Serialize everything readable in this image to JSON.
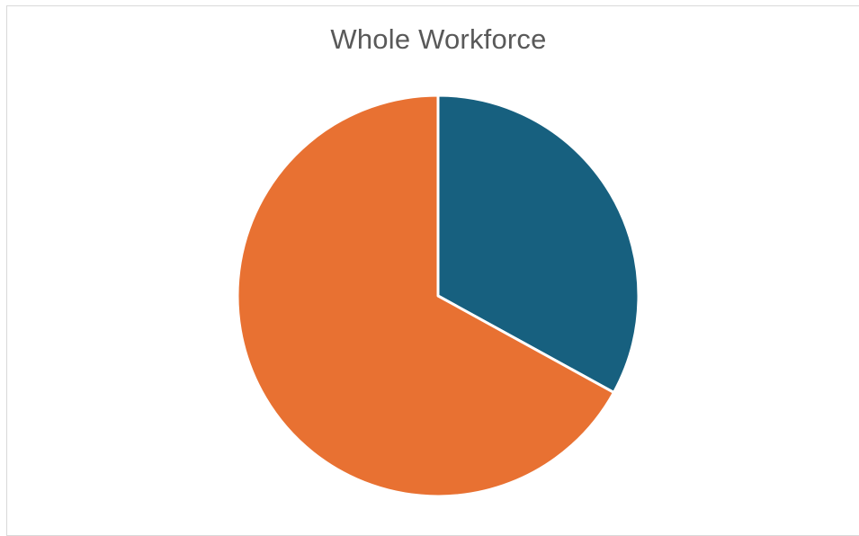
{
  "chart_data": {
    "type": "pie",
    "title": "Whole Workforce",
    "slices": [
      {
        "value": 33,
        "color": "#17607f"
      },
      {
        "value": 67,
        "color": "#e87132"
      }
    ],
    "legend": "none",
    "data_labels": "none"
  }
}
